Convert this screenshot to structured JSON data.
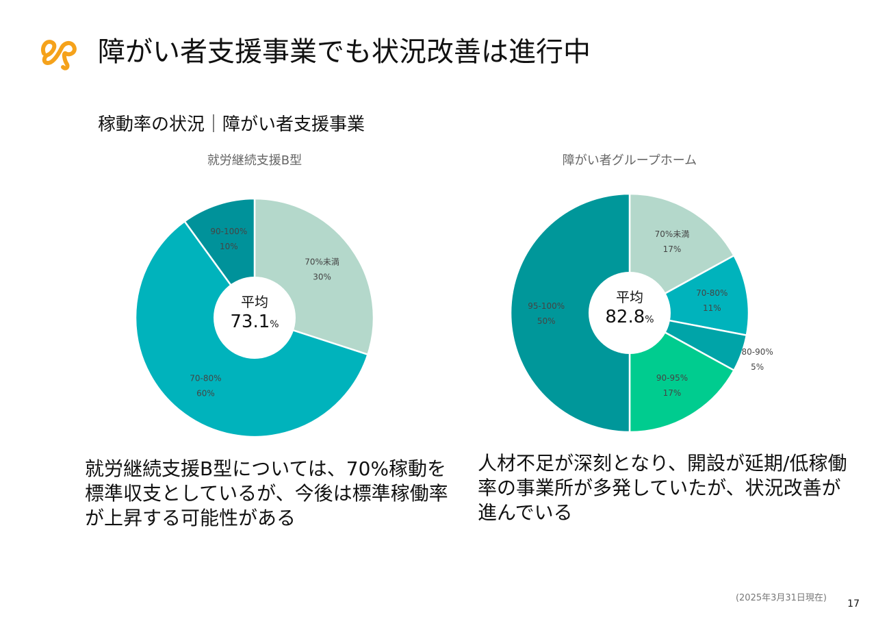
{
  "page": {
    "title": "障がい者支援事業でも状況改善は進行中",
    "subtitle": "稼動率の状況｜障がい者支援事業",
    "footnote": "(2025年3月31日現在)",
    "page_number": "17",
    "descriptions": {
      "left": "就労継続支援B型については、70%稼動を標準収支としているが、今後は標準稼働率が上昇する可能性がある",
      "right": "人材不足が深刻となり、開設が延期/低稼働率の事業所が多発していたが、状況改善が進んでいる"
    }
  },
  "chart_data": [
    {
      "type": "pie",
      "title": "就労継続支援B型",
      "center_label": "平均",
      "center_value": "73.1",
      "center_unit": "%",
      "categories": [
        "70%未満",
        "70-80%",
        "90-100%"
      ],
      "values": [
        30,
        60,
        10
      ],
      "value_labels": [
        "30%",
        "60%",
        "10%"
      ],
      "colors": [
        "#b4d8cb",
        "#00b3bc",
        "#00929a"
      ]
    },
    {
      "type": "pie",
      "title": "障がい者グループホーム",
      "center_label": "平均",
      "center_value": "82.8",
      "center_unit": "%",
      "categories": [
        "70%未満",
        "70-80%",
        "80-90%",
        "90-95%",
        "95-100%"
      ],
      "values": [
        17,
        11,
        5,
        17,
        50
      ],
      "value_labels": [
        "17%",
        "11%",
        "5%",
        "17%",
        "50%"
      ],
      "colors": [
        "#b4d8cb",
        "#00b3bc",
        "#00a4a8",
        "#00cc8f",
        "#00979a"
      ]
    }
  ]
}
